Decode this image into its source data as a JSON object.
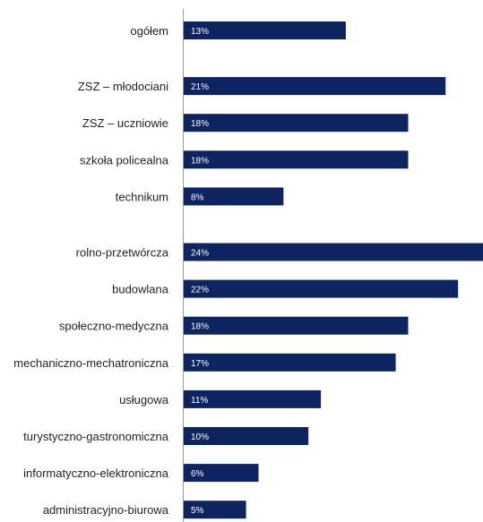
{
  "chart_data": {
    "type": "bar",
    "orientation": "horizontal",
    "categories": [
      "ogółem",
      "ZSZ – młodociani",
      "ZSZ – uczniowie",
      "szkoła policealna",
      "technikum",
      "rolno-przetwórcza",
      "budowlana",
      "społeczno-medyczna",
      "mechaniczno-mechatroniczna",
      "usługowa",
      "turystyczno-gastronomiczna",
      "informatyczno-elektroniczna",
      "administracyjno-biurowa"
    ],
    "groups": [
      [
        0
      ],
      [
        1,
        2,
        3,
        4
      ],
      [
        5,
        6,
        7,
        8,
        9,
        10,
        11,
        12
      ]
    ],
    "values": [
      13,
      21,
      18,
      18,
      8,
      24,
      22,
      18,
      17,
      11,
      10,
      6,
      5
    ],
    "value_labels": [
      "13%",
      "21%",
      "18%",
      "18%",
      "8%",
      "24%",
      "22%",
      "18%",
      "17%",
      "11%",
      "10%",
      "6%",
      "5%"
    ],
    "unit": "%",
    "xlim": [
      0,
      24
    ],
    "bar_color": "#0d2461",
    "axis_color": "#9a9a9a",
    "grid": false,
    "legend": "none"
  }
}
